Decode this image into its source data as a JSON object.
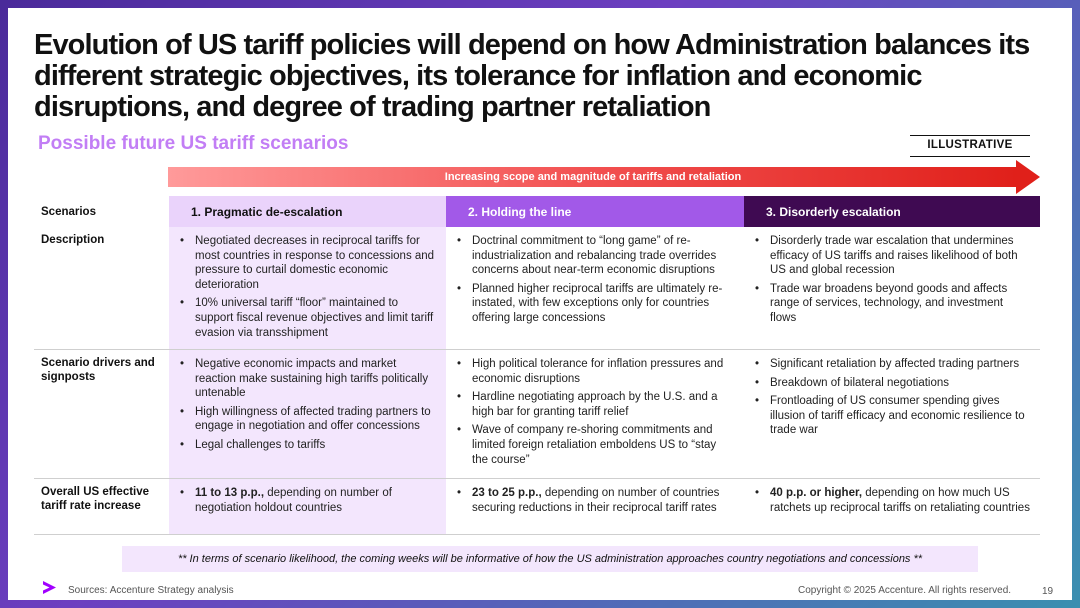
{
  "title": "Evolution of US tariff policies will depend on how Administration balances its different strategic objectives, its tolerance for inflation and economic disruptions, and degree of trading partner retaliation",
  "subtitle": "Possible future US tariff scenarios",
  "badge": "ILLUSTRATIVE",
  "arrow_label": "Increasing scope and magnitude of tariffs and retaliation",
  "colors": {
    "accent_purple": "#a259e8",
    "dark_purple": "#3f0a52",
    "light_purple": "#ead3fb",
    "arrow_red": "#e0201a"
  },
  "table": {
    "header_label": "Scenarios",
    "columns": [
      "1. Pragmatic de-escalation",
      "2. Holding the line",
      "3. Disorderly escalation"
    ],
    "rows": {
      "description": {
        "label": "Description",
        "c1": [
          "Negotiated decreases in reciprocal tariffs for most countries in response to concessions and pressure to curtail domestic economic deterioration",
          "10% universal tariff “floor” maintained to support fiscal revenue objectives and limit tariff evasion via transshipment"
        ],
        "c2": [
          "Doctrinal commitment to “long game” of re-industrialization and rebalancing trade overrides concerns about near-term economic disruptions",
          "Planned higher reciprocal tariffs are ultimately re-instated, with few exceptions only for countries offering large concessions"
        ],
        "c3": [
          "Disorderly trade war escalation that undermines efficacy of US tariffs and raises likelihood of both US and global recession",
          "Trade war broadens beyond goods and affects range of services, technology, and investment flows"
        ]
      },
      "drivers": {
        "label": "Scenario drivers and signposts",
        "c1": [
          "Negative economic impacts and market reaction make sustaining high tariffs politically untenable",
          "High willingness of affected trading partners to engage in negotiation and offer concessions",
          "Legal challenges to tariffs"
        ],
        "c2": [
          "High political tolerance for inflation pressures and economic disruptions",
          "Hardline negotiating approach by the U.S. and a high bar for granting tariff relief",
          "Wave of company re-shoring commitments and limited foreign retaliation emboldens US to “stay the course”"
        ],
        "c3": [
          "Significant retaliation by affected trading partners",
          "Breakdown of bilateral negotiations",
          "Frontloading of US consumer spending gives illusion of tariff efficacy and economic resilience to trade war"
        ]
      },
      "overall": {
        "label": "Overall US effective tariff rate increase",
        "c1": {
          "bold": "11 to 13 p.p.,",
          "rest": " depending on number of negotiation holdout countries"
        },
        "c2": {
          "bold": "23 to 25 p.p.,",
          "rest": " depending on number of countries securing reductions in their reciprocal tariff rates"
        },
        "c3": {
          "bold": "40 p.p. or higher,",
          "rest": " depending on how much US ratchets up reciprocal tariffs on retaliating countries"
        }
      }
    }
  },
  "note": "** In terms of scenario likelihood, the coming weeks will be informative of how the US administration approaches country negotiations and concessions **",
  "footer": {
    "sources": "Sources: Accenture Strategy analysis",
    "copyright": "Copyright © 2025 Accenture. All rights reserved.",
    "page": "19"
  }
}
